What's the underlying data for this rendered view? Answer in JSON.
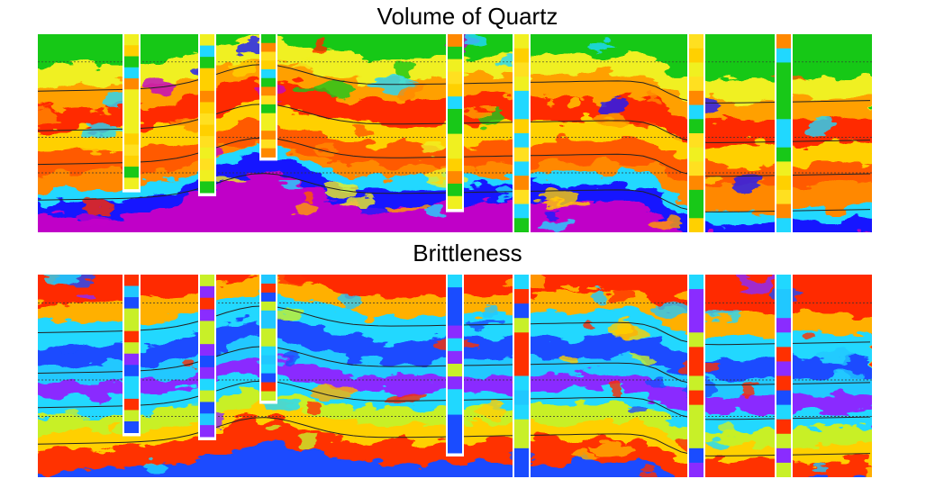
{
  "panels": [
    {
      "title": "Volume of Quartz"
    },
    {
      "title": "Brittleness"
    }
  ]
}
